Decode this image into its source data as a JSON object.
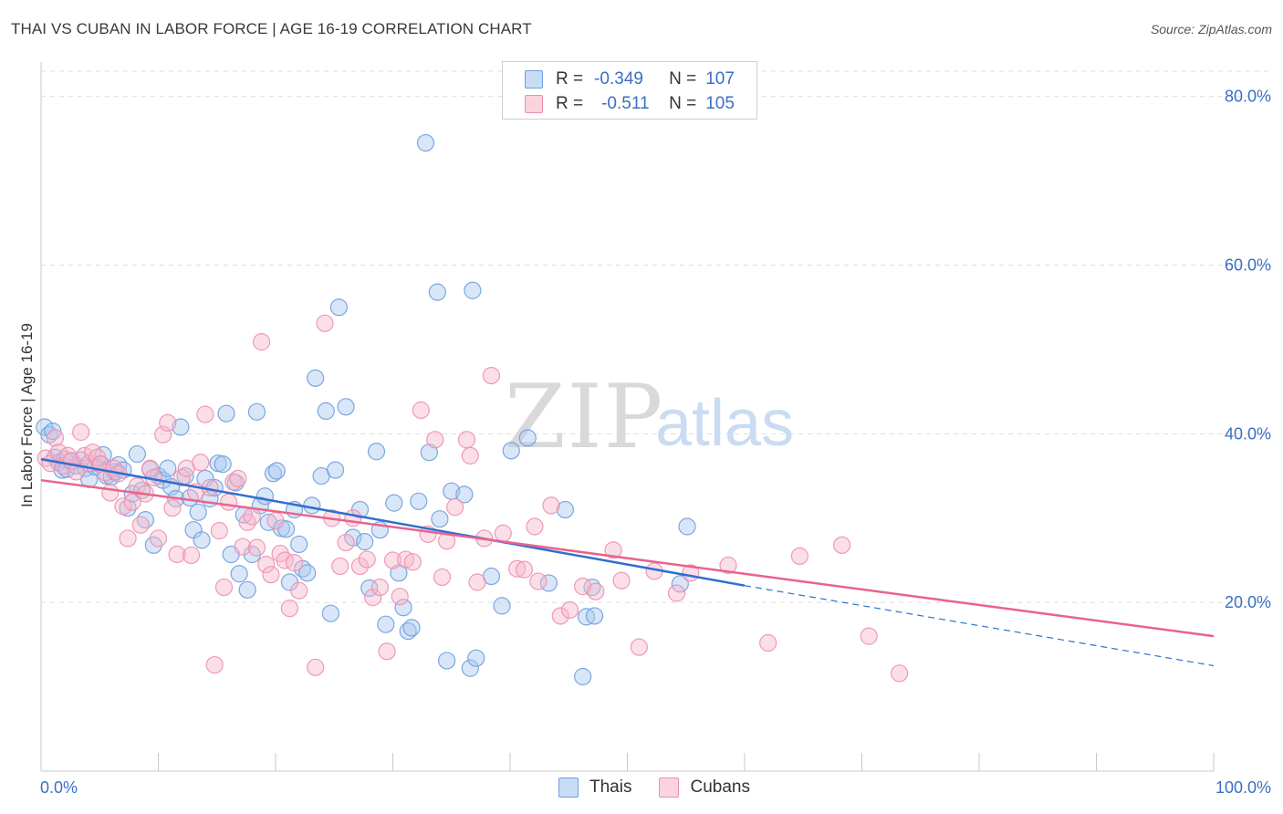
{
  "title": "THAI VS CUBAN IN LABOR FORCE | AGE 16-19 CORRELATION CHART",
  "source": "Source: ZipAtlas.com",
  "watermark": {
    "zip": "ZIP",
    "atlas": "atlas"
  },
  "legend": {
    "thais": {
      "r_label": "R =",
      "r_value": "-0.349",
      "n_label": "N =",
      "n_value": "107"
    },
    "cubans": {
      "r_label": "R =",
      "r_value": "-0.511",
      "n_label": "N =",
      "n_value": "105"
    }
  },
  "colors": {
    "thais_fill": "#a9c8ef",
    "thais_stroke": "#6f9fdc",
    "thais_line": "#2f6fd0",
    "cubans_fill": "#f6b9cc",
    "cubans_stroke": "#ee8fae",
    "cubans_line": "#e8638e",
    "tick_label": "#3a6fc4",
    "grid": "#dddddd"
  },
  "chart_data": {
    "type": "scatter",
    "title": "THAI VS CUBAN IN LABOR FORCE | AGE 16-19 CORRELATION CHART",
    "xlabel": "",
    "ylabel": "In Labor Force | Age 16-19",
    "xlim": [
      0,
      100
    ],
    "ylim": [
      0,
      83
    ],
    "x_tick_labels": [
      "0.0%",
      "100.0%"
    ],
    "y_ticks": [
      20,
      40,
      60,
      80
    ],
    "y_tick_labels": [
      "20.0%",
      "40.0%",
      "60.0%",
      "80.0%"
    ],
    "grid": true,
    "legend_position": "bottom",
    "series": [
      {
        "name": "Thais",
        "trend": {
          "x": [
            0,
            60
          ],
          "y": [
            37.0,
            22.0
          ],
          "dashed_to": [
            100,
            12.5
          ]
        },
        "points": [
          [
            0.3,
            40.8
          ],
          [
            0.7,
            39.9
          ],
          [
            1.0,
            40.3
          ],
          [
            1.2,
            37.2
          ],
          [
            1.5,
            36.6
          ],
          [
            1.8,
            35.7
          ],
          [
            2.0,
            37.0
          ],
          [
            2.2,
            35.8
          ],
          [
            2.6,
            36.7
          ],
          [
            3.0,
            36.2
          ],
          [
            3.4,
            36.9
          ],
          [
            3.8,
            35.9
          ],
          [
            4.1,
            34.6
          ],
          [
            4.6,
            36.1
          ],
          [
            5.0,
            36.4
          ],
          [
            5.3,
            37.5
          ],
          [
            5.6,
            35.0
          ],
          [
            6.0,
            34.9
          ],
          [
            6.3,
            35.5
          ],
          [
            6.6,
            36.3
          ],
          [
            7.0,
            35.7
          ],
          [
            7.4,
            31.2
          ],
          [
            7.8,
            32.9
          ],
          [
            8.2,
            37.6
          ],
          [
            8.6,
            33.3
          ],
          [
            8.9,
            29.8
          ],
          [
            9.3,
            35.8
          ],
          [
            9.6,
            26.8
          ],
          [
            10.0,
            35.0
          ],
          [
            10.4,
            34.5
          ],
          [
            10.8,
            35.9
          ],
          [
            11.1,
            33.7
          ],
          [
            11.5,
            32.3
          ],
          [
            11.9,
            40.8
          ],
          [
            12.3,
            35.0
          ],
          [
            12.7,
            32.4
          ],
          [
            13.0,
            28.6
          ],
          [
            13.4,
            30.7
          ],
          [
            13.7,
            27.4
          ],
          [
            14.0,
            34.7
          ],
          [
            14.4,
            32.3
          ],
          [
            14.8,
            33.6
          ],
          [
            15.1,
            36.5
          ],
          [
            15.5,
            36.4
          ],
          [
            15.8,
            42.4
          ],
          [
            16.2,
            25.7
          ],
          [
            16.6,
            34.2
          ],
          [
            16.9,
            23.4
          ],
          [
            17.3,
            30.4
          ],
          [
            17.6,
            21.5
          ],
          [
            18.0,
            25.7
          ],
          [
            18.4,
            42.6
          ],
          [
            18.7,
            31.5
          ],
          [
            19.1,
            32.6
          ],
          [
            19.4,
            29.5
          ],
          [
            19.8,
            35.3
          ],
          [
            20.1,
            35.6
          ],
          [
            20.5,
            28.8
          ],
          [
            20.9,
            28.7
          ],
          [
            21.2,
            22.4
          ],
          [
            21.6,
            31.0
          ],
          [
            22.0,
            26.9
          ],
          [
            22.3,
            24.0
          ],
          [
            22.7,
            23.5
          ],
          [
            23.1,
            31.5
          ],
          [
            23.4,
            46.6
          ],
          [
            23.9,
            35.0
          ],
          [
            24.3,
            42.7
          ],
          [
            24.7,
            18.7
          ],
          [
            25.1,
            35.7
          ],
          [
            25.4,
            55.0
          ],
          [
            26.0,
            43.2
          ],
          [
            26.6,
            27.7
          ],
          [
            27.2,
            31.0
          ],
          [
            27.6,
            27.2
          ],
          [
            28.0,
            21.7
          ],
          [
            28.6,
            37.9
          ],
          [
            28.9,
            28.6
          ],
          [
            29.4,
            17.4
          ],
          [
            30.1,
            31.8
          ],
          [
            30.5,
            23.5
          ],
          [
            30.9,
            19.4
          ],
          [
            31.3,
            16.6
          ],
          [
            31.6,
            17.0
          ],
          [
            32.2,
            32.0
          ],
          [
            32.8,
            74.5
          ],
          [
            33.1,
            37.8
          ],
          [
            33.8,
            56.8
          ],
          [
            34.0,
            29.9
          ],
          [
            34.6,
            13.1
          ],
          [
            35.0,
            33.2
          ],
          [
            36.1,
            32.8
          ],
          [
            36.6,
            12.2
          ],
          [
            36.8,
            57.0
          ],
          [
            37.1,
            13.4
          ],
          [
            38.4,
            23.1
          ],
          [
            39.3,
            19.6
          ],
          [
            40.1,
            38.0
          ],
          [
            43.3,
            22.3
          ],
          [
            44.7,
            31.0
          ],
          [
            46.2,
            11.2
          ],
          [
            46.5,
            18.3
          ],
          [
            47.0,
            21.8
          ],
          [
            47.2,
            18.4
          ],
          [
            54.5,
            22.2
          ],
          [
            55.1,
            29.0
          ],
          [
            41.5,
            39.5
          ]
        ]
      },
      {
        "name": "Cubans",
        "trend": {
          "x": [
            0,
            100
          ],
          "y": [
            34.5,
            16.0
          ]
        },
        "points": [
          [
            0.4,
            37.1
          ],
          [
            0.8,
            36.5
          ],
          [
            1.2,
            39.5
          ],
          [
            1.5,
            37.8
          ],
          [
            1.9,
            36.2
          ],
          [
            2.3,
            37.4
          ],
          [
            2.6,
            36.8
          ],
          [
            3.0,
            35.5
          ],
          [
            3.4,
            40.2
          ],
          [
            3.7,
            37.4
          ],
          [
            4.1,
            36.5
          ],
          [
            4.4,
            37.8
          ],
          [
            4.8,
            37.2
          ],
          [
            5.1,
            36.4
          ],
          [
            5.5,
            35.4
          ],
          [
            5.9,
            33.0
          ],
          [
            6.2,
            35.9
          ],
          [
            6.6,
            35.3
          ],
          [
            7.0,
            31.4
          ],
          [
            7.4,
            27.6
          ],
          [
            7.8,
            31.9
          ],
          [
            8.2,
            33.8
          ],
          [
            8.5,
            29.2
          ],
          [
            8.9,
            32.9
          ],
          [
            9.3,
            35.9
          ],
          [
            9.6,
            34.8
          ],
          [
            10.0,
            27.6
          ],
          [
            10.4,
            39.9
          ],
          [
            10.8,
            41.3
          ],
          [
            11.2,
            31.2
          ],
          [
            11.6,
            25.7
          ],
          [
            12.0,
            34.8
          ],
          [
            12.4,
            35.9
          ],
          [
            12.8,
            25.6
          ],
          [
            13.2,
            33.1
          ],
          [
            13.6,
            36.6
          ],
          [
            14.0,
            42.3
          ],
          [
            14.4,
            33.6
          ],
          [
            14.8,
            12.6
          ],
          [
            15.2,
            28.5
          ],
          [
            15.6,
            21.8
          ],
          [
            16.0,
            31.9
          ],
          [
            16.4,
            34.3
          ],
          [
            16.8,
            34.7
          ],
          [
            17.2,
            26.6
          ],
          [
            17.6,
            29.5
          ],
          [
            18.0,
            30.2
          ],
          [
            18.4,
            26.5
          ],
          [
            18.8,
            50.9
          ],
          [
            19.2,
            24.5
          ],
          [
            19.6,
            23.3
          ],
          [
            20.0,
            29.7
          ],
          [
            20.4,
            25.8
          ],
          [
            20.8,
            25.0
          ],
          [
            21.2,
            19.3
          ],
          [
            21.6,
            24.7
          ],
          [
            22.0,
            21.4
          ],
          [
            23.4,
            12.3
          ],
          [
            24.2,
            53.1
          ],
          [
            24.8,
            30.0
          ],
          [
            25.5,
            24.3
          ],
          [
            26.0,
            27.1
          ],
          [
            26.6,
            30.0
          ],
          [
            27.2,
            24.3
          ],
          [
            27.8,
            25.1
          ],
          [
            28.3,
            20.6
          ],
          [
            28.9,
            21.8
          ],
          [
            29.5,
            14.2
          ],
          [
            30.0,
            25.0
          ],
          [
            30.6,
            20.7
          ],
          [
            31.1,
            25.1
          ],
          [
            31.7,
            24.8
          ],
          [
            32.4,
            42.8
          ],
          [
            33.0,
            28.1
          ],
          [
            33.6,
            39.3
          ],
          [
            34.2,
            23.0
          ],
          [
            34.6,
            27.3
          ],
          [
            35.3,
            31.3
          ],
          [
            36.3,
            39.3
          ],
          [
            36.6,
            37.4
          ],
          [
            37.2,
            22.4
          ],
          [
            37.8,
            27.6
          ],
          [
            38.4,
            46.9
          ],
          [
            39.4,
            28.2
          ],
          [
            40.6,
            24.0
          ],
          [
            41.2,
            23.9
          ],
          [
            42.1,
            29.0
          ],
          [
            42.4,
            22.5
          ],
          [
            43.5,
            31.5
          ],
          [
            44.3,
            18.4
          ],
          [
            45.1,
            19.1
          ],
          [
            46.2,
            21.9
          ],
          [
            47.3,
            21.3
          ],
          [
            48.8,
            26.2
          ],
          [
            49.5,
            22.6
          ],
          [
            51.0,
            14.7
          ],
          [
            52.3,
            23.7
          ],
          [
            54.2,
            21.1
          ],
          [
            55.4,
            23.5
          ],
          [
            58.6,
            24.4
          ],
          [
            62.0,
            15.2
          ],
          [
            64.7,
            25.5
          ],
          [
            68.3,
            26.8
          ],
          [
            70.6,
            16.0
          ],
          [
            73.2,
            11.6
          ]
        ]
      }
    ]
  }
}
